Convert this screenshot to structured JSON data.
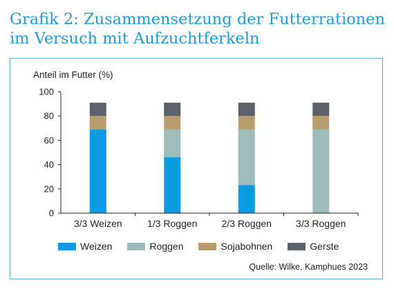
{
  "title": "Grafik 2: Zusammensetzung der Futterrationen im Versuch mit Aufzuchtferkeln",
  "chart_data": {
    "type": "bar",
    "stacked": true,
    "ylabel": "Anteil im Futter (%)",
    "ylim": [
      0,
      100
    ],
    "yticks": [
      "0",
      "20",
      "40",
      "60",
      "80",
      "100"
    ],
    "categories": [
      "3/3 Weizen",
      "1/3 Roggen",
      "2/3 Roggen",
      "3/3 Roggen"
    ],
    "series": [
      {
        "name": "Weizen",
        "color": "#0a9be0",
        "values": [
          69,
          46,
          23,
          0
        ]
      },
      {
        "name": "Roggen",
        "color": "#9dbbb8",
        "values": [
          0,
          23,
          46,
          69
        ]
      },
      {
        "name": "Sojabohnen",
        "color": "#b89e6e",
        "values": [
          11,
          11,
          11,
          11
        ]
      },
      {
        "name": "Gerste",
        "color": "#5b6069",
        "values": [
          11,
          11,
          11,
          11
        ]
      }
    ],
    "grid": false,
    "legend_position": "bottom"
  },
  "source": "Quelle: Wilke, Kamphues 2023"
}
